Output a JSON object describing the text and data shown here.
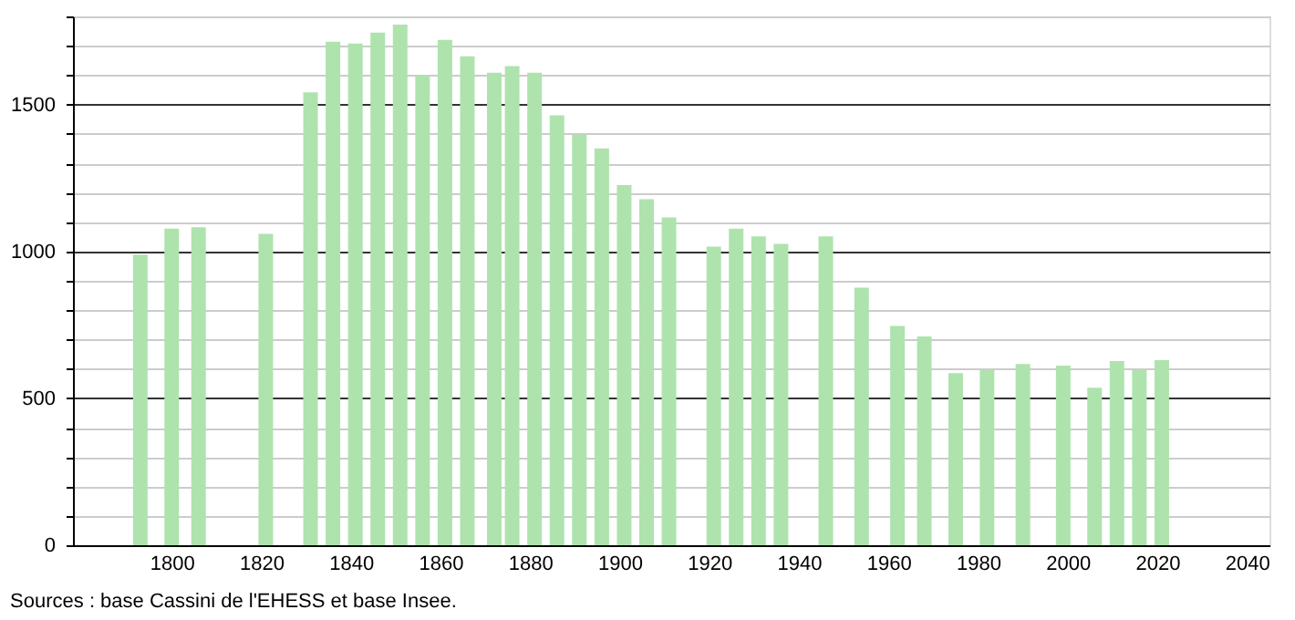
{
  "chart_data": {
    "type": "bar",
    "x": [
      1793,
      1800,
      1806,
      1821,
      1831,
      1836,
      1841,
      1846,
      1851,
      1856,
      1861,
      1866,
      1872,
      1876,
      1881,
      1886,
      1891,
      1896,
      1901,
      1906,
      1911,
      1921,
      1926,
      1931,
      1936,
      1946,
      1954,
      1962,
      1968,
      1975,
      1982,
      1990,
      1999,
      2006,
      2011,
      2016,
      2021
    ],
    "values": [
      989,
      1078,
      1082,
      1060,
      1542,
      1714,
      1708,
      1745,
      1772,
      1600,
      1720,
      1664,
      1608,
      1631,
      1608,
      1463,
      1398,
      1351,
      1226,
      1178,
      1116,
      1016,
      1078,
      1051,
      1026,
      1051,
      877,
      746,
      711,
      586,
      596,
      617,
      611,
      536,
      627,
      596,
      630
    ],
    "color": "#aee3ae",
    "xlim": [
      1780,
      2043
    ],
    "xticks": [
      1800,
      1820,
      1840,
      1860,
      1880,
      1900,
      1920,
      1940,
      1960,
      1980,
      2000,
      2020,
      2040
    ],
    "ylim": [
      0,
      1800
    ],
    "yticks": [
      0,
      {
        "value": 100,
        "label": null
      },
      {
        "value": 200,
        "label": null
      },
      {
        "value": 300,
        "label": null
      },
      {
        "value": 400,
        "label": null
      },
      500,
      {
        "value": 600,
        "label": null
      },
      {
        "value": 700,
        "label": null
      },
      {
        "value": 800,
        "label": null
      },
      {
        "value": 900,
        "label": null
      },
      1000,
      {
        "value": 1100,
        "label": null
      },
      {
        "value": 1200,
        "label": null
      },
      {
        "value": 1300,
        "label": null
      },
      {
        "value": 1400,
        "label": null
      },
      1500,
      {
        "value": 1600,
        "label": null
      },
      {
        "value": 1700,
        "label": null
      },
      {
        "value": 1800,
        "label": null
      }
    ],
    "grid": "y",
    "annotations": [
      "Sources : base Cassini de l'EHESS et base Insee."
    ]
  }
}
